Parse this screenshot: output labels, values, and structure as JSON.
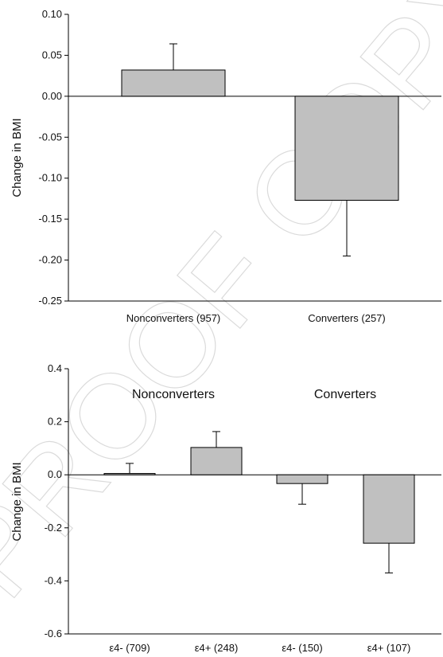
{
  "chart_data": [
    {
      "type": "bar",
      "ylabel": "Change in BMI",
      "categories": [
        "Nonconverters (957)",
        "Converters (257)"
      ],
      "values": [
        0.032,
        -0.127
      ],
      "error_bars": [
        0.032,
        0.068
      ],
      "ylim": [
        -0.25,
        0.1
      ],
      "yticks": [
        0.1,
        0.05,
        0.0,
        -0.05,
        -0.1,
        -0.15,
        -0.2,
        -0.25
      ],
      "ytick_labels": [
        "0.10",
        "0.05",
        "0.00",
        "-0.05",
        "-0.10",
        "-0.15",
        "-0.20",
        "-0.25"
      ],
      "grid": false,
      "bar_color": "#c0c0c0"
    },
    {
      "type": "bar",
      "ylabel": "Change in BMI",
      "categories": [
        "ε4- (709)",
        "ε4+ (248)",
        "ε4- (150)",
        "ε4+ (107)"
      ],
      "values": [
        0.005,
        0.103,
        -0.033,
        -0.258
      ],
      "error_bars": [
        0.038,
        0.06,
        0.078,
        0.112
      ],
      "group_labels": [
        "Nonconverters",
        "Converters"
      ],
      "ylim": [
        -0.6,
        0.4
      ],
      "yticks": [
        0.4,
        0.2,
        0.0,
        -0.2,
        -0.4,
        -0.6
      ],
      "ytick_labels": [
        "0.4",
        "0.2",
        "0.0",
        "-0.2",
        "-0.4",
        "-0.6"
      ],
      "grid": false,
      "bar_color": "#c0c0c0"
    }
  ],
  "watermark": {
    "text": "PROOF COPY"
  }
}
